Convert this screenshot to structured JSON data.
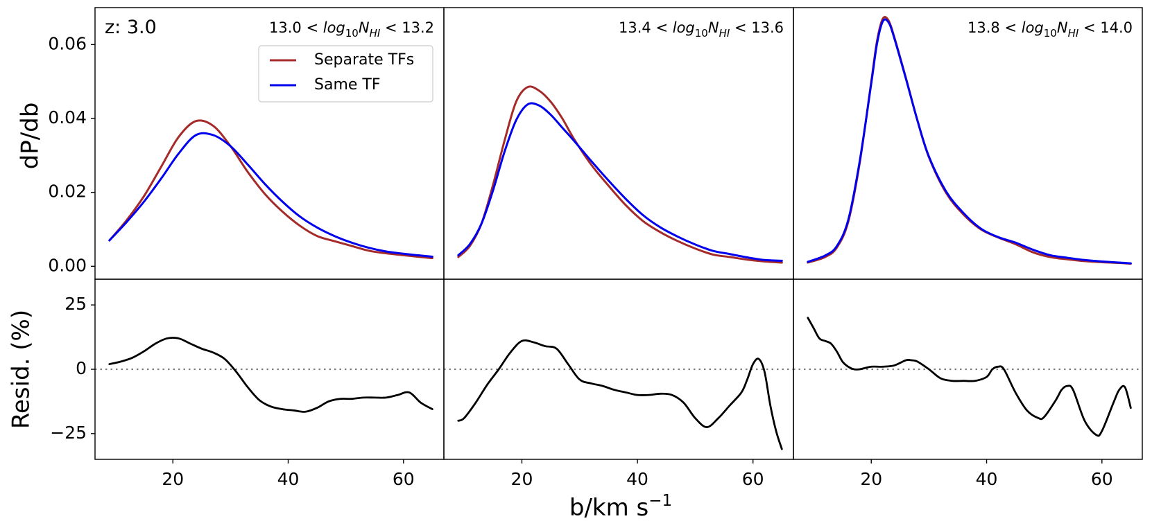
{
  "chart_data": {
    "type": "line",
    "redshift_label": "z: 3.0",
    "xlabel": "b/km s",
    "xlabel_sup": "−1",
    "ylabel_top": "dP/db",
    "ylabel_bottom": "Resid. (%)",
    "xlim": [
      6.5,
      67.0
    ],
    "ylim_top": [
      -0.0035,
      0.07
    ],
    "ylim_bottom": [
      -35,
      35
    ],
    "xticks": [
      20,
      40,
      60
    ],
    "yticks_top": [
      0.0,
      0.02,
      0.04,
      0.06
    ],
    "ytick_labels_top": [
      "0.00",
      "0.02",
      "0.04",
      "0.06"
    ],
    "yticks_bottom": [
      -25,
      0,
      25
    ],
    "ytick_labels_bottom": [
      "−25",
      "0",
      "25"
    ],
    "legend": [
      {
        "name": "Separate TFs",
        "color": "#a52a2a"
      },
      {
        "name": "Same TF",
        "color": "#0000ee"
      }
    ],
    "residual_color": "#000000",
    "zero_line_color": "#808080",
    "panels": [
      {
        "label_lo": "13.0 < ",
        "label_var": "log",
        "label_sub1": "10",
        "label_N": "N",
        "label_sub2": "HI",
        "label_hi": " < 13.2",
        "x": [
          9,
          12,
          15,
          18,
          21,
          24,
          27,
          30,
          33,
          36,
          39,
          42,
          45,
          48,
          51,
          54,
          57,
          60,
          63,
          65
        ],
        "series": [
          {
            "name": "Separate TFs",
            "values": [
              0.007,
              0.0125,
              0.019,
              0.027,
              0.035,
              0.0393,
              0.038,
              0.0325,
              0.0255,
              0.0195,
              0.0148,
              0.011,
              0.0082,
              0.0068,
              0.0055,
              0.0042,
              0.0035,
              0.003,
              0.0025,
              0.0022
            ]
          },
          {
            "name": "Same TF",
            "values": [
              0.007,
              0.012,
              0.0175,
              0.0238,
              0.0305,
              0.0355,
              0.0355,
              0.0325,
              0.0275,
              0.0222,
              0.0175,
              0.0135,
              0.0105,
              0.0082,
              0.0064,
              0.005,
              0.004,
              0.0034,
              0.0029,
              0.0026
            ]
          }
        ],
        "residual": {
          "x": [
            9,
            11,
            13,
            15,
            17,
            19,
            21,
            23,
            25,
            27,
            29,
            31,
            33,
            35,
            37,
            39,
            41,
            43,
            45,
            47,
            49,
            51,
            53,
            55,
            57,
            59,
            61,
            63,
            65
          ],
          "values": [
            2,
            3,
            4.5,
            7,
            10,
            12,
            12,
            10,
            8,
            6.5,
            4,
            -1,
            -7,
            -12,
            -14.5,
            -15.5,
            -16,
            -16.5,
            -15,
            -12.5,
            -11.5,
            -11.5,
            -11,
            -11,
            -11,
            -10,
            -9,
            -13,
            -15.5
          ]
        }
      },
      {
        "label_lo": "13.4 < ",
        "label_var": "log",
        "label_sub1": "10",
        "label_N": "N",
        "label_sub2": "HI",
        "label_hi": " < 13.6",
        "x": [
          9,
          11,
          13,
          15,
          17,
          19,
          21,
          23,
          25,
          27,
          29,
          32,
          35,
          38,
          41,
          44,
          47,
          50,
          53,
          56,
          59,
          62,
          65
        ],
        "series": [
          {
            "name": "Separate TFs",
            "values": [
              0.0025,
              0.0055,
              0.0115,
              0.022,
              0.034,
              0.0445,
              0.0485,
              0.0475,
              0.0445,
              0.04,
              0.0345,
              0.0275,
              0.0218,
              0.0165,
              0.0122,
              0.0092,
              0.0068,
              0.0048,
              0.0032,
              0.0025,
              0.0018,
              0.0013,
              0.001
            ]
          },
          {
            "name": "Same TF",
            "values": [
              0.003,
              0.006,
              0.0115,
              0.0205,
              0.031,
              0.0395,
              0.0438,
              0.0435,
              0.041,
              0.0375,
              0.034,
              0.0285,
              0.0232,
              0.0182,
              0.0138,
              0.0105,
              0.008,
              0.0059,
              0.0042,
              0.0033,
              0.0024,
              0.0017,
              0.0015
            ]
          }
        ],
        "residual": {
          "x": [
            9,
            10,
            12,
            14,
            16,
            18,
            20,
            22,
            24,
            26,
            28,
            30,
            32,
            34,
            36,
            38,
            40,
            42,
            44,
            46,
            48,
            50,
            52,
            54,
            56,
            58,
            59,
            60,
            61,
            62,
            63,
            64,
            65
          ],
          "values": [
            -20,
            -19,
            -13,
            -6,
            0,
            6.5,
            11,
            10.5,
            9,
            8,
            2,
            -4,
            -5.5,
            -6.5,
            -8,
            -9,
            -10,
            -10,
            -9.5,
            -10,
            -13,
            -19,
            -22.5,
            -19,
            -14,
            -9,
            -4,
            2,
            4,
            -1,
            -14,
            -24,
            -31
          ]
        }
      },
      {
        "label_lo": "13.8 < ",
        "label_var": "log",
        "label_sub1": "10",
        "label_N": "N",
        "label_sub2": "HI",
        "label_hi": " < 14.0",
        "x": [
          9,
          12,
          14,
          16,
          18,
          20,
          21,
          22,
          23,
          24,
          26,
          28,
          30,
          33,
          36,
          39,
          42,
          45,
          48,
          51,
          54,
          57,
          60,
          63,
          65
        ],
        "series": [
          {
            "name": "Separate TFs",
            "values": [
              0.001,
              0.0025,
              0.005,
              0.012,
              0.028,
              0.05,
              0.061,
              0.067,
              0.0665,
              0.062,
              0.051,
              0.0395,
              0.0295,
              0.0198,
              0.014,
              0.01,
              0.0078,
              0.006,
              0.0038,
              0.0025,
              0.0019,
              0.0014,
              0.0011,
              0.0009,
              0.0007
            ]
          },
          {
            "name": "Same TF",
            "values": [
              0.0012,
              0.0029,
              0.0054,
              0.0125,
              0.0285,
              0.0495,
              0.0603,
              0.0663,
              0.066,
              0.0617,
              0.0508,
              0.0395,
              0.0297,
              0.0202,
              0.0144,
              0.0102,
              0.0079,
              0.0064,
              0.0045,
              0.003,
              0.0023,
              0.0017,
              0.0013,
              0.001,
              0.0008
            ]
          }
        ],
        "residual": {
          "x": [
            9,
            10,
            11,
            12,
            13,
            14,
            15,
            16,
            17,
            18,
            20,
            22,
            24,
            26,
            27,
            28,
            30,
            32,
            34,
            36,
            38,
            40,
            41,
            42,
            43,
            45,
            47,
            49,
            50,
            52,
            53,
            54,
            55,
            57,
            59,
            60,
            62,
            63,
            64,
            65
          ],
          "values": [
            20,
            16,
            12,
            11,
            10,
            7,
            3,
            1,
            0,
            0,
            1,
            1,
            1.5,
            3.5,
            3.5,
            3,
            0,
            -3.5,
            -4.5,
            -4.5,
            -4.5,
            -3,
            0,
            1,
            0,
            -9,
            -16,
            -19,
            -18.5,
            -12,
            -8,
            -6.5,
            -8,
            -20,
            -25.5,
            -24,
            -13,
            -8,
            -7,
            -15
          ]
        }
      }
    ]
  }
}
